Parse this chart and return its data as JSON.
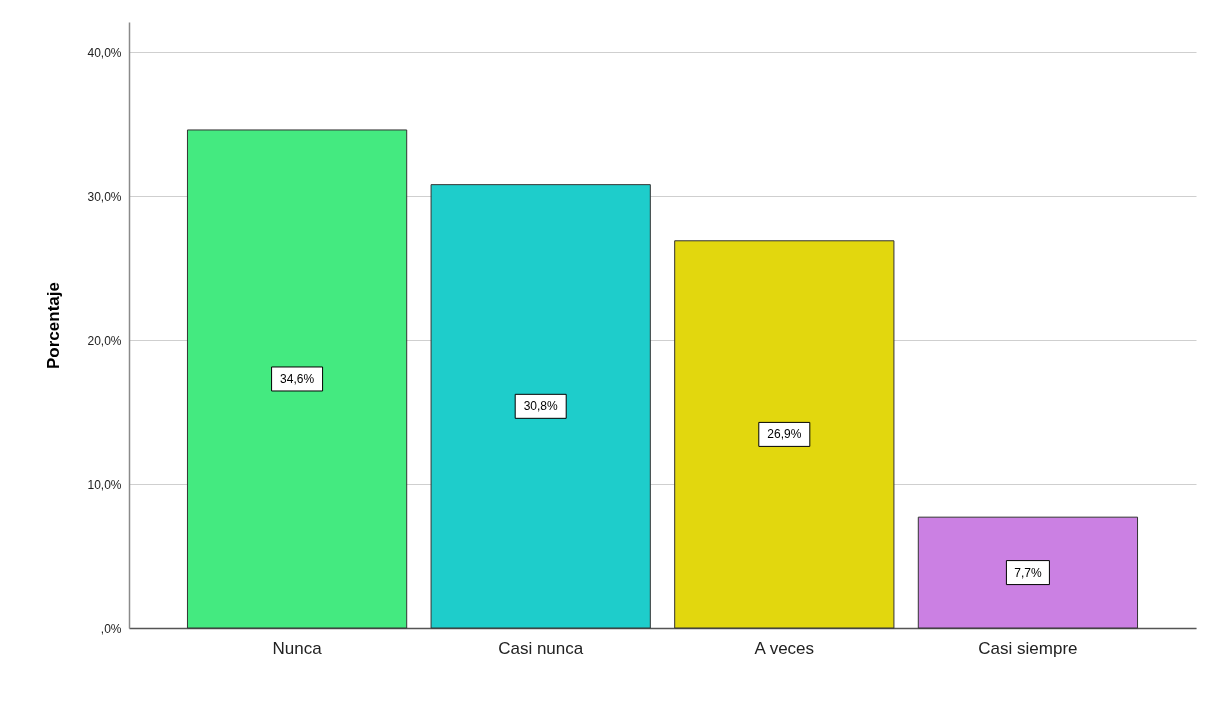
{
  "chart_data": {
    "type": "bar",
    "ylabel": "Porcentaje",
    "categories": [
      "Nunca",
      "Casi nunca",
      "A veces",
      "Casi siempre"
    ],
    "values": [
      34.6,
      30.8,
      26.9,
      7.7
    ],
    "colors": [
      "#44ea80",
      "#1ecdcb",
      "#e2d70e",
      "#cb80e3"
    ],
    "value_labels": [
      "34,6%",
      "30,8%",
      "26,9%",
      "7,7%"
    ],
    "ylim": [
      0,
      42.1
    ],
    "yticks": [
      {
        "value": 0,
        "label": ",0%"
      },
      {
        "value": 10,
        "label": "10,0%"
      },
      {
        "value": 20,
        "label": "20,0%"
      },
      {
        "value": 30,
        "label": "30,0%"
      },
      {
        "value": 40,
        "label": "40,0%"
      }
    ],
    "grid": "y"
  }
}
